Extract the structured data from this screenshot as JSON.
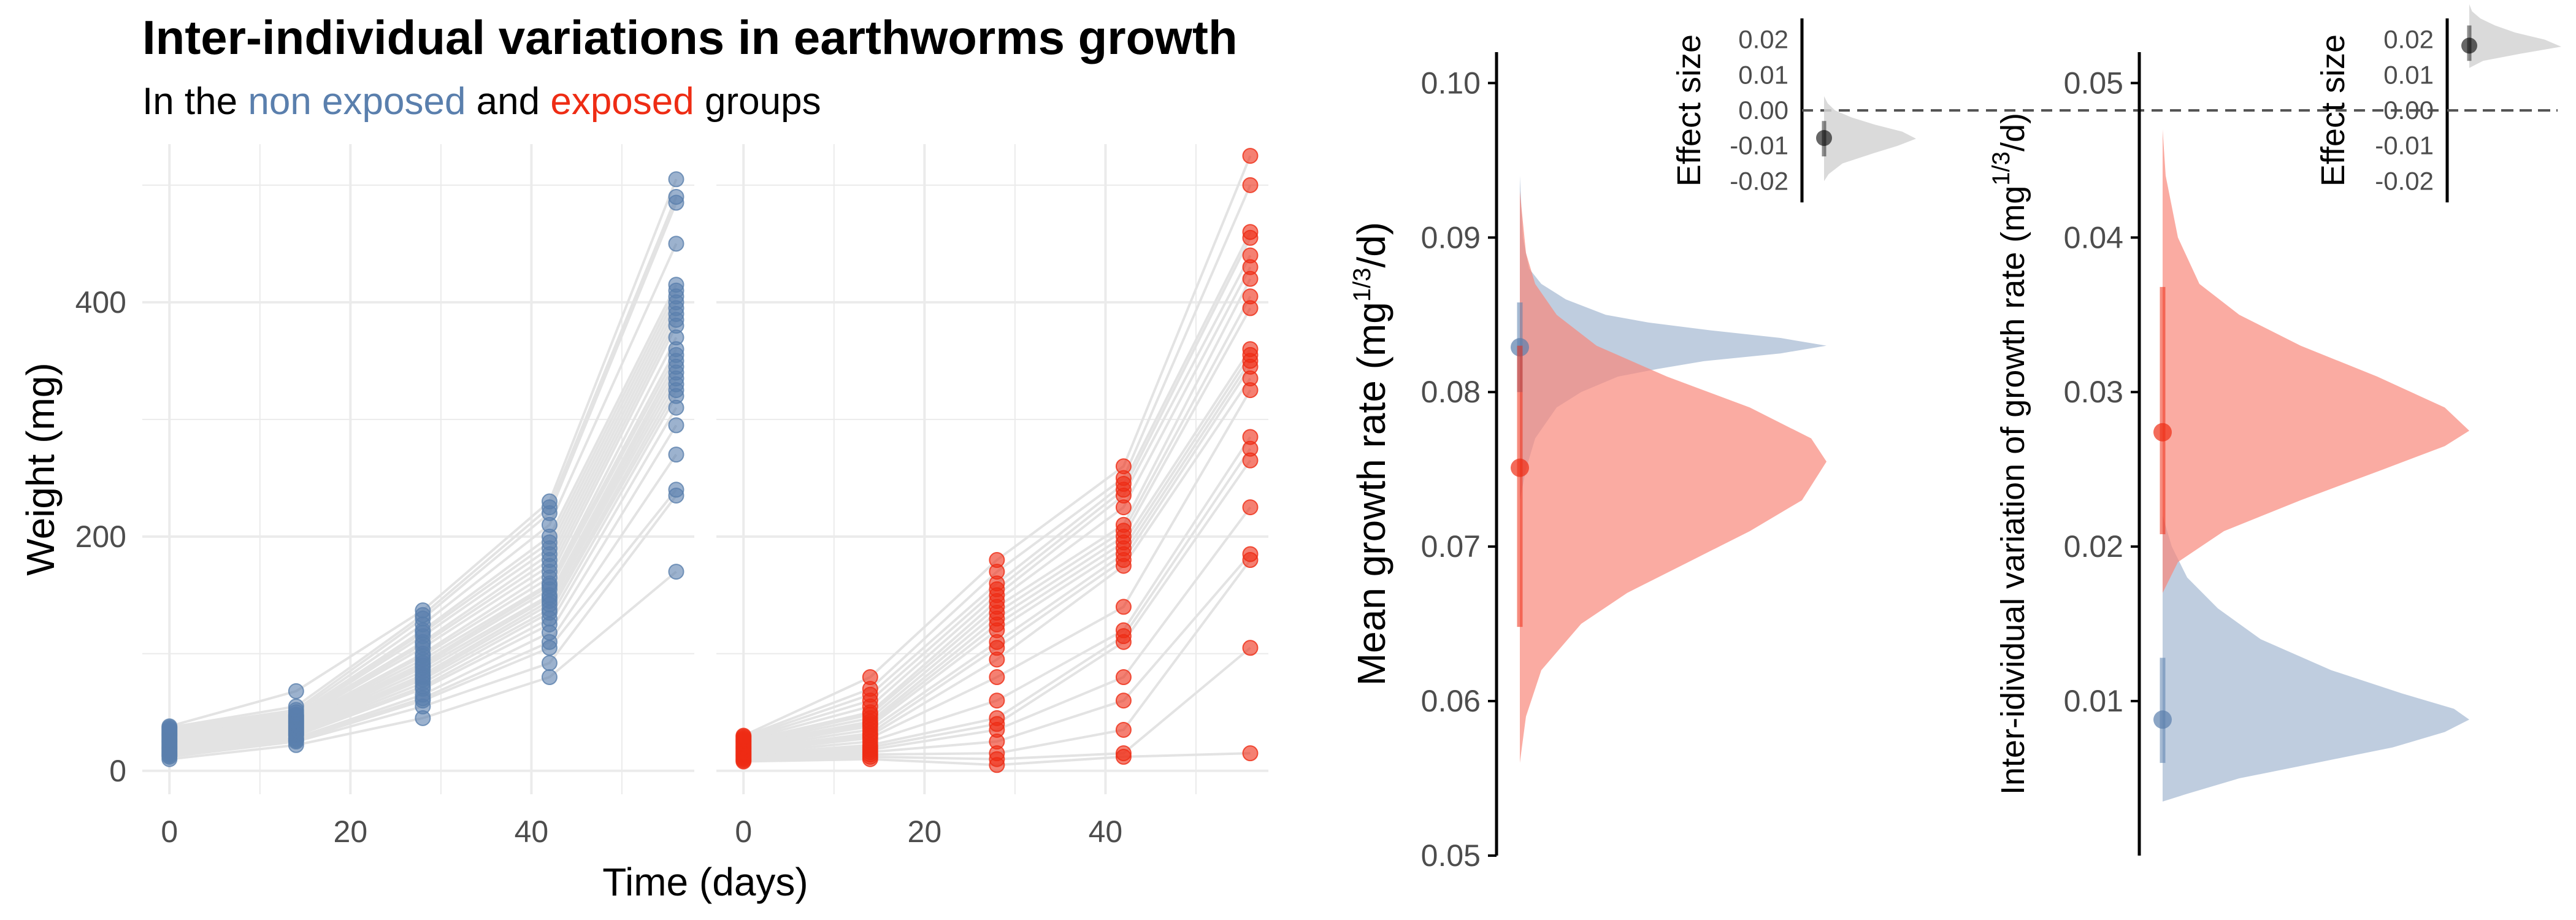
{
  "header": {
    "title": "Inter-individual variations in earthworms growth",
    "subtitle_prefix": "In the ",
    "subtitle_group1": "non exposed",
    "subtitle_mid": " and ",
    "subtitle_group2": "exposed",
    "subtitle_suffix": " groups"
  },
  "colors": {
    "non_exposed": "#5a7fad",
    "exposed": "#ee2c14",
    "non_exposed_fill": "#a9bcd4",
    "exposed_fill": "#f8877a",
    "effect_fill": "#d3d3d3",
    "line": "#e3e3e3",
    "grid": "#ebebeb"
  },
  "chart_data": [
    {
      "type": "scatter",
      "group": "non exposed",
      "xlabel": "Time (days)",
      "ylabel": "Weight (mg)",
      "xlim": [
        -3,
        58
      ],
      "ylim": [
        -20,
        535
      ],
      "xticks": [
        0,
        20,
        40
      ],
      "yticks": [
        0,
        200,
        400
      ],
      "grid": true,
      "x": [
        0,
        14,
        28,
        42,
        56
      ],
      "individuals": [
        [
          10,
          22,
          45,
          80,
          170
        ],
        [
          12,
          25,
          55,
          92,
          235
        ],
        [
          13,
          26,
          60,
          105,
          240
        ],
        [
          14,
          27,
          62,
          110,
          270
        ],
        [
          15,
          28,
          65,
          118,
          295
        ],
        [
          16,
          30,
          70,
          125,
          310
        ],
        [
          17,
          31,
          72,
          130,
          320
        ],
        [
          18,
          32,
          75,
          135,
          325
        ],
        [
          19,
          33,
          78,
          138,
          330
        ],
        [
          20,
          34,
          80,
          142,
          335
        ],
        [
          21,
          35,
          82,
          145,
          340
        ],
        [
          22,
          36,
          85,
          148,
          345
        ],
        [
          23,
          37,
          88,
          150,
          350
        ],
        [
          24,
          38,
          90,
          155,
          355
        ],
        [
          25,
          39,
          92,
          158,
          360
        ],
        [
          26,
          40,
          95,
          160,
          370
        ],
        [
          27,
          41,
          98,
          165,
          380
        ],
        [
          28,
          42,
          100,
          170,
          385
        ],
        [
          29,
          43,
          105,
          175,
          390
        ],
        [
          30,
          44,
          108,
          180,
          395
        ],
        [
          31,
          45,
          110,
          185,
          400
        ],
        [
          32,
          46,
          115,
          190,
          405
        ],
        [
          33,
          47,
          118,
          195,
          410
        ],
        [
          34,
          48,
          120,
          200,
          415
        ],
        [
          35,
          50,
          125,
          210,
          450
        ],
        [
          36,
          52,
          130,
          220,
          485
        ],
        [
          37,
          55,
          133,
          225,
          490
        ],
        [
          38,
          68,
          137,
          230,
          505
        ]
      ]
    },
    {
      "type": "scatter",
      "group": "exposed",
      "xlabel": "Time (days)",
      "ylabel": "",
      "xlim": [
        -3,
        58
      ],
      "ylim": [
        -20,
        535
      ],
      "xticks": [
        0,
        20,
        40
      ],
      "yticks": [
        0,
        200,
        400
      ],
      "grid": true,
      "x": [
        0,
        14,
        28,
        42,
        56
      ],
      "individuals": [
        [
          8,
          10,
          5,
          12,
          15
        ],
        [
          9,
          12,
          10,
          15,
          105
        ],
        [
          10,
          14,
          15,
          35,
          180
        ],
        [
          11,
          16,
          25,
          60,
          185
        ],
        [
          12,
          18,
          35,
          80,
          225
        ],
        [
          13,
          20,
          40,
          110,
          265
        ],
        [
          14,
          22,
          45,
          115,
          275
        ],
        [
          15,
          25,
          60,
          120,
          285
        ],
        [
          16,
          28,
          80,
          140,
          325
        ],
        [
          17,
          30,
          95,
          175,
          335
        ],
        [
          18,
          32,
          105,
          180,
          345
        ],
        [
          19,
          35,
          110,
          185,
          350
        ],
        [
          20,
          38,
          120,
          190,
          355
        ],
        [
          21,
          40,
          125,
          195,
          360
        ],
        [
          22,
          42,
          130,
          200,
          395
        ],
        [
          23,
          45,
          135,
          205,
          405
        ],
        [
          24,
          48,
          140,
          210,
          420
        ],
        [
          25,
          50,
          145,
          225,
          430
        ],
        [
          26,
          55,
          150,
          235,
          440
        ],
        [
          27,
          60,
          155,
          240,
          455
        ],
        [
          28,
          65,
          160,
          245,
          460
        ],
        [
          29,
          70,
          170,
          250,
          500
        ],
        [
          30,
          80,
          180,
          260,
          525
        ]
      ]
    },
    {
      "type": "area",
      "name": "mean-growth-rate",
      "ylabel": "Mean growth rate (mg^1/3/d)",
      "ylim": [
        0.05,
        0.102
      ],
      "yticks": [
        0.05,
        0.06,
        0.07,
        0.08,
        0.09,
        0.1
      ],
      "ytick_labels": [
        "0.05",
        "0.06",
        "0.07",
        "0.08",
        "0.09",
        "0.10"
      ],
      "distributions": [
        {
          "group": "non exposed",
          "point": 0.0829,
          "interval": [
            0.08,
            0.0858
          ],
          "density": [
            [
              0.073,
              0.0
            ],
            [
              0.075,
              0.02
            ],
            [
              0.077,
              0.05
            ],
            [
              0.079,
              0.12
            ],
            [
              0.08,
              0.2
            ],
            [
              0.081,
              0.32
            ],
            [
              0.0815,
              0.45
            ],
            [
              0.082,
              0.6
            ],
            [
              0.0825,
              0.85
            ],
            [
              0.083,
              1.0
            ],
            [
              0.0835,
              0.85
            ],
            [
              0.084,
              0.62
            ],
            [
              0.0845,
              0.42
            ],
            [
              0.085,
              0.28
            ],
            [
              0.086,
              0.15
            ],
            [
              0.087,
              0.07
            ],
            [
              0.088,
              0.03
            ],
            [
              0.09,
              0.01
            ],
            [
              0.094,
              0.0
            ]
          ]
        },
        {
          "group": "exposed",
          "point": 0.0751,
          "interval": [
            0.0648,
            0.083
          ],
          "density": [
            [
              0.056,
              0.0
            ],
            [
              0.059,
              0.02
            ],
            [
              0.062,
              0.07
            ],
            [
              0.065,
              0.2
            ],
            [
              0.067,
              0.35
            ],
            [
              0.069,
              0.55
            ],
            [
              0.071,
              0.75
            ],
            [
              0.073,
              0.92
            ],
            [
              0.0755,
              1.0
            ],
            [
              0.077,
              0.95
            ],
            [
              0.079,
              0.75
            ],
            [
              0.081,
              0.48
            ],
            [
              0.083,
              0.25
            ],
            [
              0.085,
              0.12
            ],
            [
              0.087,
              0.05
            ],
            [
              0.089,
              0.02
            ],
            [
              0.093,
              0.0
            ]
          ]
        }
      ],
      "inset": {
        "ylabel": "Effect size",
        "ylim": [
          -0.026,
          0.026
        ],
        "yticks": [
          -0.02,
          -0.01,
          0.0,
          0.01,
          0.02
        ],
        "ytick_labels": [
          "-0.02",
          "-0.01",
          "0.00",
          "0.01",
          "0.02"
        ],
        "reference_line": 0.0,
        "point": -0.0078,
        "interval": [
          -0.013,
          -0.003
        ],
        "density": [
          [
            -0.02,
            0.0
          ],
          [
            -0.018,
            0.05
          ],
          [
            -0.015,
            0.2
          ],
          [
            -0.012,
            0.55
          ],
          [
            -0.01,
            0.8
          ],
          [
            -0.008,
            1.0
          ],
          [
            -0.006,
            0.85
          ],
          [
            -0.004,
            0.55
          ],
          [
            -0.002,
            0.3
          ],
          [
            0.0,
            0.12
          ],
          [
            0.002,
            0.04
          ],
          [
            0.004,
            0.0
          ]
        ]
      }
    },
    {
      "type": "area",
      "name": "inter-individual-variation",
      "ylabel": "Inter-idividual variation of growth rate (mg^1/3/d)",
      "ylim": [
        0.0,
        0.052
      ],
      "yticks": [
        0.01,
        0.02,
        0.03,
        0.04,
        0.05
      ],
      "ytick_labels": [
        "0.01",
        "0.02",
        "0.03",
        "0.04",
        "0.05"
      ],
      "distributions": [
        {
          "group": "non exposed",
          "point": 0.0088,
          "interval": [
            0.006,
            0.0128
          ],
          "density": [
            [
              0.0035,
              0.0
            ],
            [
              0.004,
              0.08
            ],
            [
              0.005,
              0.25
            ],
            [
              0.006,
              0.5
            ],
            [
              0.007,
              0.75
            ],
            [
              0.008,
              0.92
            ],
            [
              0.0088,
              1.0
            ],
            [
              0.0095,
              0.95
            ],
            [
              0.0105,
              0.78
            ],
            [
              0.012,
              0.55
            ],
            [
              0.014,
              0.32
            ],
            [
              0.016,
              0.18
            ],
            [
              0.018,
              0.08
            ],
            [
              0.02,
              0.03
            ],
            [
              0.022,
              0.0
            ]
          ]
        },
        {
          "group": "exposed",
          "point": 0.0274,
          "interval": [
            0.0208,
            0.0368
          ],
          "density": [
            [
              0.017,
              0.0
            ],
            [
              0.019,
              0.05
            ],
            [
              0.021,
              0.2
            ],
            [
              0.023,
              0.45
            ],
            [
              0.025,
              0.72
            ],
            [
              0.0265,
              0.92
            ],
            [
              0.0275,
              1.0
            ],
            [
              0.029,
              0.92
            ],
            [
              0.031,
              0.7
            ],
            [
              0.033,
              0.45
            ],
            [
              0.035,
              0.25
            ],
            [
              0.037,
              0.12
            ],
            [
              0.04,
              0.05
            ],
            [
              0.044,
              0.01
            ],
            [
              0.047,
              0.0
            ]
          ]
        }
      ],
      "inset": {
        "ylabel": "Effect size",
        "ylim": [
          -0.026,
          0.026
        ],
        "yticks": [
          -0.02,
          -0.01,
          0.0,
          0.01,
          0.02
        ],
        "ytick_labels": [
          "-0.02",
          "-0.01",
          "0.00",
          "0.01",
          "0.02"
        ],
        "reference_line": 0.0,
        "point": 0.0183,
        "interval": [
          0.014,
          0.024
        ],
        "density": [
          [
            0.012,
            0.0
          ],
          [
            0.014,
            0.15
          ],
          [
            0.016,
            0.55
          ],
          [
            0.018,
            1.0
          ],
          [
            0.02,
            0.82
          ],
          [
            0.022,
            0.5
          ],
          [
            0.024,
            0.28
          ],
          [
            0.026,
            0.12
          ],
          [
            0.028,
            0.03
          ],
          [
            0.03,
            0.0
          ]
        ]
      }
    }
  ]
}
